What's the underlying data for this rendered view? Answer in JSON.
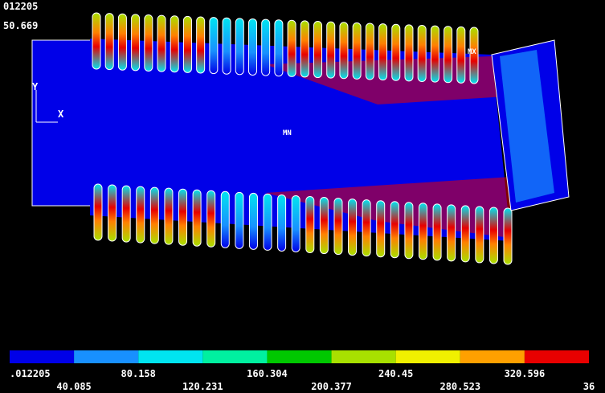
{
  "header": {
    "lines": [
      "012205",
      "50.669"
    ]
  },
  "plot": {
    "axis_labels": [
      "Y",
      "X"
    ],
    "markers": [
      "MN",
      "MX"
    ]
  },
  "legend": {
    "colors": [
      "#0000e8",
      "#1890ff",
      "#00e4f0",
      "#00f0a0",
      "#00c800",
      "#a8e000",
      "#f0f000",
      "#ffa000",
      "#e80000"
    ],
    "labels": [
      ".012205",
      "40.085",
      "80.158",
      "120.231",
      "160.304",
      "200.377",
      "240.45",
      "280.523",
      "320.596",
      "36"
    ]
  }
}
